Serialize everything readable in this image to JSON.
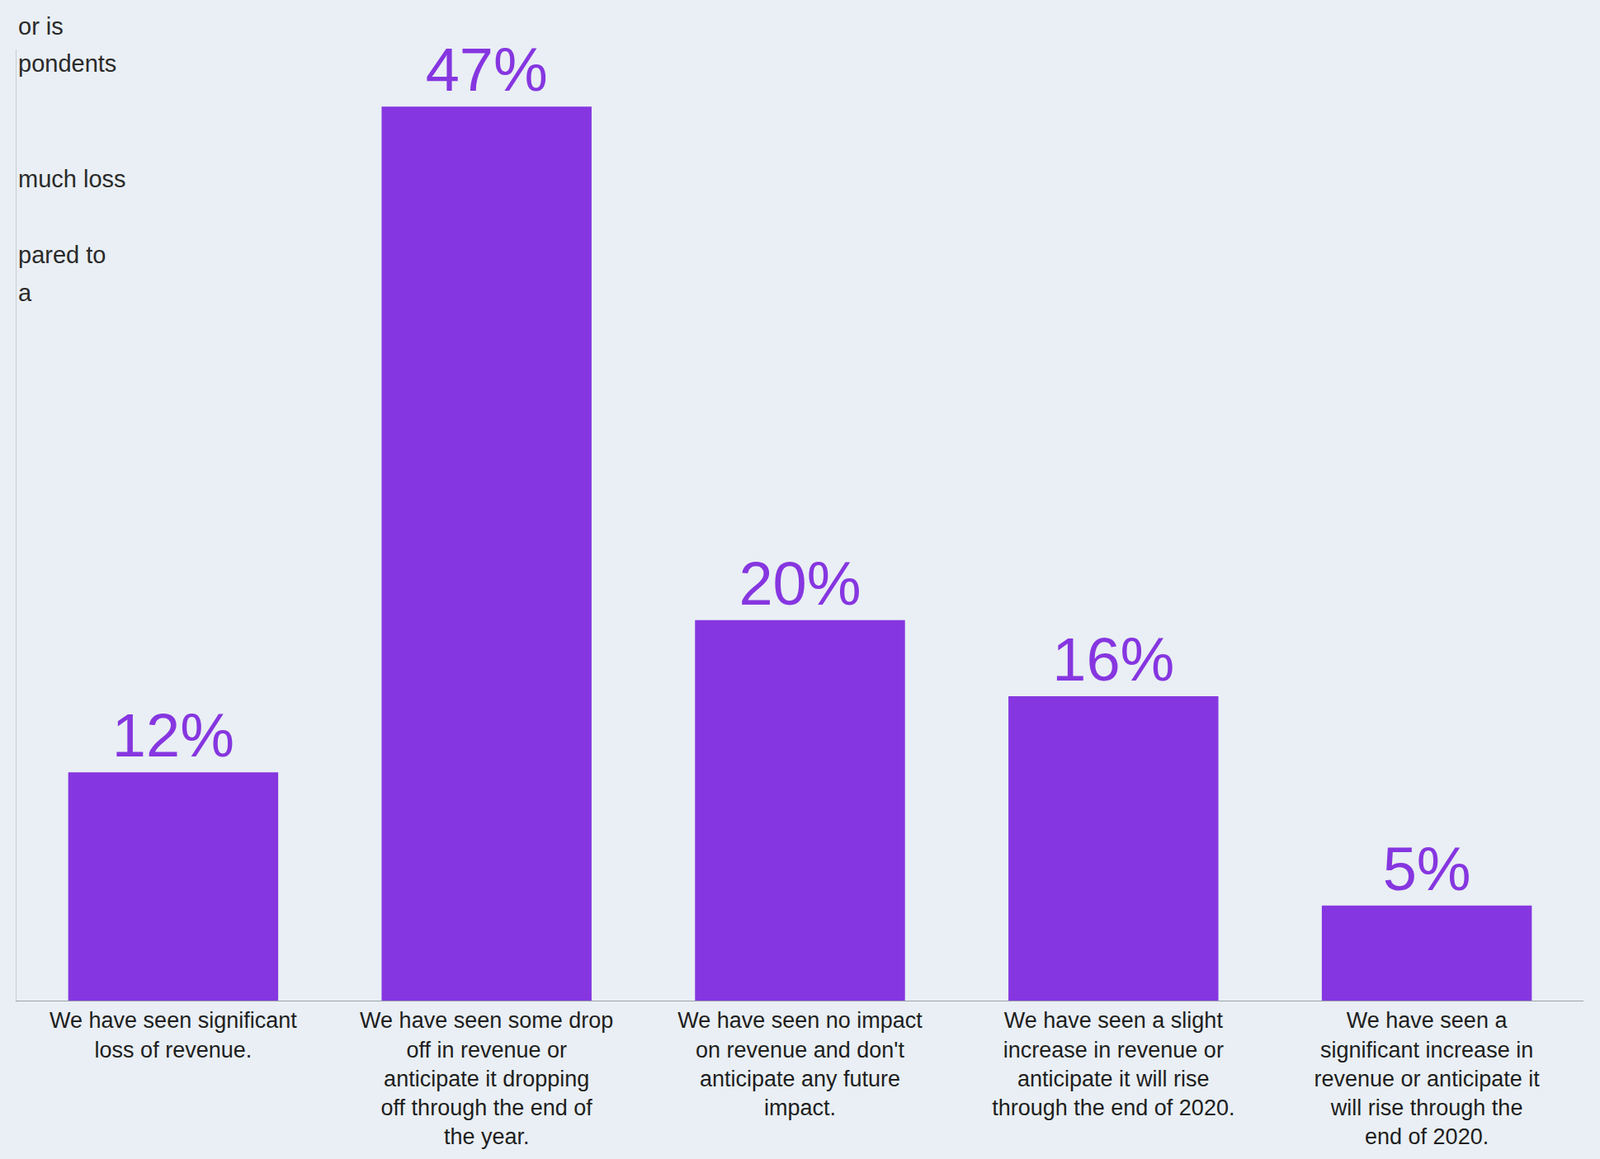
{
  "chart_data": {
    "type": "bar",
    "categories": [
      "We have seen significant loss of revenue.",
      "We have seen some drop off in revenue or anticipate it dropping off through the end of the year.",
      "We have seen no impact on revenue and don't anticipate any future impact.",
      "We have seen a slight increase in revenue or anticipate it will rise through the end of 2020.",
      "We have seen a significant increase in revenue or anticipate it will rise through the end of 2020."
    ],
    "values": [
      12,
      47,
      20,
      16,
      5
    ],
    "value_labels": [
      "12%",
      "47%",
      "20%",
      "16%",
      "5%"
    ],
    "color": "#8636e0",
    "ylim": [
      0,
      50
    ],
    "yticks": [],
    "grid": false,
    "data_labels": true,
    "tick_labels": "x",
    "annotations": [
      "or is",
      "pondents",
      "much loss",
      "pared to",
      "a"
    ]
  }
}
